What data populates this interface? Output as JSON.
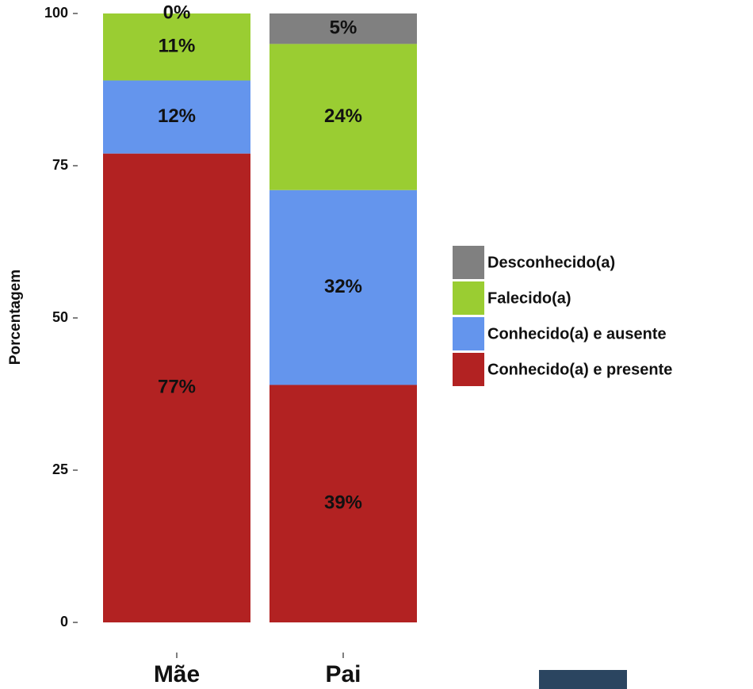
{
  "chart_data": {
    "type": "stacked_bar",
    "y_label": "Porcentagem",
    "categories": [
      "Mãe",
      "Pai"
    ],
    "series": [
      {
        "name": "Conhecido(a) e presente",
        "color": "#b22222",
        "values": [
          77,
          39
        ],
        "value_labels": [
          "77%",
          "39%"
        ]
      },
      {
        "name": "Conhecido(a) e ausente",
        "color": "#6495ed",
        "values": [
          12,
          32
        ],
        "value_labels": [
          "12%",
          "32%"
        ]
      },
      {
        "name": "Falecido(a)",
        "color": "#9acd32",
        "values": [
          11,
          24
        ],
        "value_labels": [
          "11%",
          "24%"
        ]
      },
      {
        "name": "Desconhecido(a)",
        "color": "#808080",
        "values": [
          0,
          5
        ],
        "value_labels": [
          "0%",
          "5%"
        ]
      }
    ],
    "ylim": [
      0,
      100
    ],
    "yticks": [
      0,
      25,
      50,
      75,
      100
    ],
    "grid": false,
    "legend": "right"
  }
}
